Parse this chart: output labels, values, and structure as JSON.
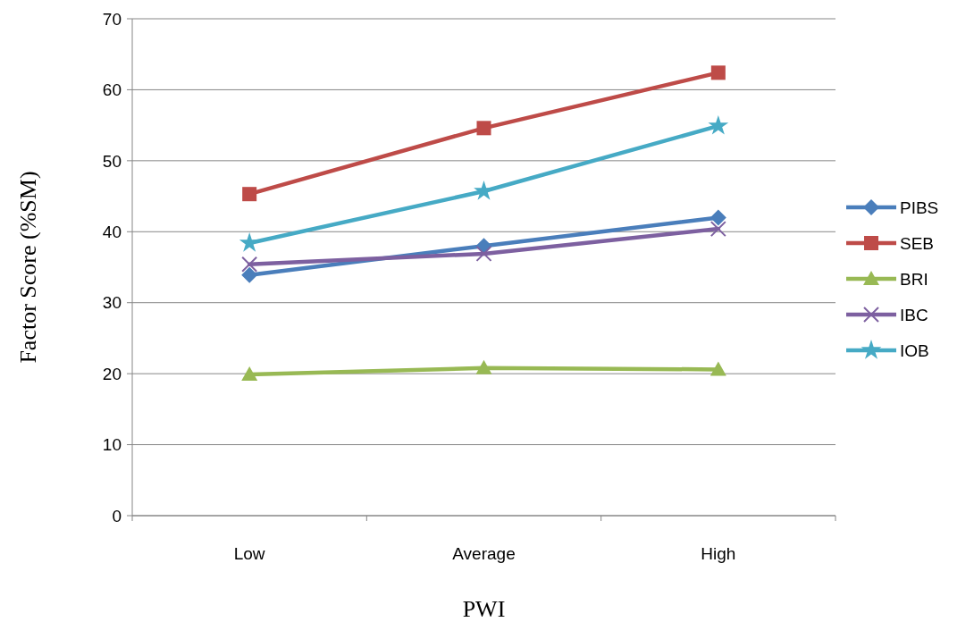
{
  "chart_data": {
    "type": "line",
    "xlabel": "PWI",
    "ylabel": "Factor Score (%SM)",
    "categories": [
      "Low",
      "Average",
      "High"
    ],
    "ylim": [
      0,
      70
    ],
    "yticks": [
      0,
      10,
      20,
      30,
      40,
      50,
      60,
      70
    ],
    "grid": "y",
    "legend": "right",
    "line_style": "solid",
    "series": [
      {
        "name": "PIBS",
        "color": "#4a7ebb",
        "marker": "diamond",
        "values": [
          33.9,
          38.0,
          42.0
        ]
      },
      {
        "name": "SEB",
        "color": "#be4b48",
        "marker": "square",
        "values": [
          45.3,
          54.6,
          62.4
        ]
      },
      {
        "name": "BRI",
        "color": "#98b954",
        "marker": "triangle",
        "values": [
          19.9,
          20.8,
          20.6
        ]
      },
      {
        "name": "IBC",
        "color": "#7d60a0",
        "marker": "cross",
        "values": [
          35.4,
          36.9,
          40.4
        ]
      },
      {
        "name": "IOB",
        "color": "#46aac5",
        "marker": "star",
        "values": [
          38.4,
          45.7,
          54.9
        ]
      }
    ]
  }
}
